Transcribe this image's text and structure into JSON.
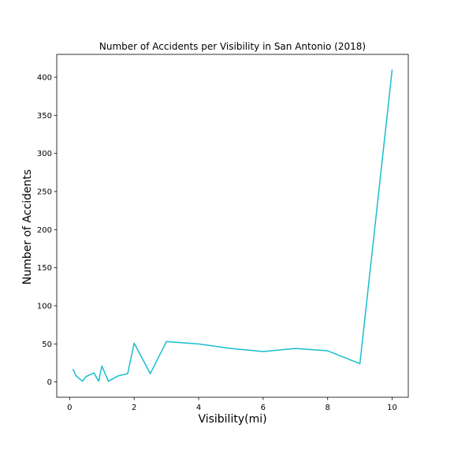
{
  "chart_data": {
    "type": "line",
    "title": "Number of Accidents per Visibility in San Antonio (2018)",
    "xlabel": "Visibility(mi)",
    "ylabel": "Number of Accidents",
    "xlim": [
      -0.4,
      10.5
    ],
    "ylim": [
      -20,
      430
    ],
    "xticks": [
      0,
      2,
      4,
      6,
      8,
      10
    ],
    "yticks": [
      0,
      50,
      100,
      150,
      200,
      250,
      300,
      350,
      400
    ],
    "grid": false,
    "series": [
      {
        "color": "#17becf",
        "x": [
          0.1,
          0.2,
          0.4,
          0.5,
          0.75,
          0.9,
          1.0,
          1.2,
          1.5,
          1.8,
          2.0,
          2.5,
          3.0,
          4.0,
          5.0,
          6.0,
          7.0,
          8.0,
          9.0,
          10.0
        ],
        "y": [
          17,
          8,
          1,
          7,
          12,
          1,
          21,
          1,
          8,
          11,
          51,
          11,
          53,
          50,
          44,
          40,
          44,
          41,
          24,
          410
        ]
      }
    ]
  }
}
